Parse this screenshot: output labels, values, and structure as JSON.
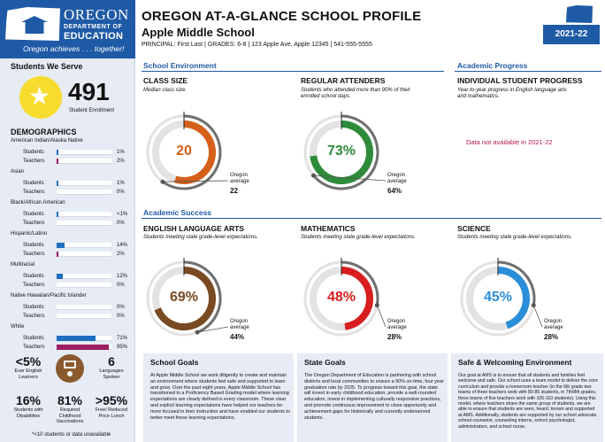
{
  "logo": {
    "org_line1": "OREGON",
    "org_line2": "DEPARTMENT OF",
    "org_line3": "EDUCATION",
    "tagline": "Oregon achieves . . . together!"
  },
  "header": {
    "title": "OREGON AT-A-GLANCE SCHOOL PROFILE",
    "school": "Apple Middle School",
    "principal_line": "PRINCIPAL: First Last | GRADES: 6-8 | 123 Apple Ave, Apple 12345 | 541-555-5555",
    "year": "2021-22"
  },
  "sidebar": {
    "heading": "Students We Serve",
    "enrollment": "491",
    "enrollment_label": "Student Enrollment",
    "demographics_heading": "DEMOGRAPHICS",
    "groups": [
      {
        "name": "American Indian/Alaska Native",
        "students": {
          "label": "Students",
          "pct": "1%",
          "value": 1
        },
        "teachers": {
          "label": "Teachers",
          "pct": "2%",
          "value": 2
        }
      },
      {
        "name": "Asian",
        "students": {
          "label": "Students",
          "pct": "1%",
          "value": 1
        },
        "teachers": {
          "label": "Teachers",
          "pct": "0%",
          "value": 0
        }
      },
      {
        "name": "Black/African American",
        "students": {
          "label": "Students",
          "pct": "<1%",
          "value": 0.5
        },
        "teachers": {
          "label": "Teachers",
          "pct": "0%",
          "value": 0
        }
      },
      {
        "name": "Hispanic/Latino",
        "students": {
          "label": "Students",
          "pct": "14%",
          "value": 14
        },
        "teachers": {
          "label": "Teachers",
          "pct": "2%",
          "value": 2
        }
      },
      {
        "name": "Multiracial",
        "students": {
          "label": "Students",
          "pct": "12%",
          "value": 12
        },
        "teachers": {
          "label": "Teachers",
          "pct": "0%",
          "value": 0
        }
      },
      {
        "name": "Native Hawaiian/Pacific Islander",
        "students": {
          "label": "Students",
          "pct": "0%",
          "value": 0
        },
        "teachers": {
          "label": "Teachers",
          "pct": "0%",
          "value": 0
        }
      },
      {
        "name": "White",
        "students": {
          "label": "Students",
          "pct": "71%",
          "value": 71
        },
        "teachers": {
          "label": "Teachers",
          "pct": "95%",
          "value": 95
        }
      }
    ],
    "stats": {
      "english_learners": {
        "value": "<5%",
        "label": "Ever English Learners"
      },
      "languages": {
        "value": "6",
        "label": "Languages Spoken"
      },
      "disabilities": {
        "value": "16%",
        "label": "Students with Disabilities"
      },
      "vaccinations": {
        "value": "81%",
        "label": "Required Childhood Vaccinations"
      },
      "lunch": {
        "value": ">95%",
        "label": "Free/ Reduced Price Lunch"
      }
    },
    "footnote": "*<10 students or data unavailable"
  },
  "sections": {
    "environment": "School Environment",
    "progress": "Academic Progress",
    "success": "Academic Success"
  },
  "metrics": {
    "class_size": {
      "title": "CLASS SIZE",
      "desc": "Median class size.",
      "value": "20",
      "avg_label": "Oregon average",
      "avg": "22",
      "fill": 0.55,
      "avg_frac": 0.6,
      "color": "#d4601a"
    },
    "attenders": {
      "title": "REGULAR ATTENDERS",
      "desc": "Students who attended more than 90% of their enrolled school days.",
      "value": "73%",
      "avg_label": "Oregon average",
      "avg": "64%",
      "fill": 0.73,
      "avg_frac": 0.64,
      "color": "#2e8b3a"
    },
    "progress": {
      "title": "INDIVIDUAL STUDENT PROGRESS",
      "desc": "Year-to-year progress in English language arts and mathematics.",
      "na": "Data not available in 2021-22"
    },
    "ela": {
      "title": "ENGLISH LANGUAGE ARTS",
      "desc": "Students meeting state grade-level expectations.",
      "value": "69%",
      "avg_label": "Oregon average",
      "avg": "44%",
      "fill": 0.69,
      "avg_frac": 0.44,
      "color": "#7a4a22"
    },
    "math": {
      "title": "MATHEMATICS",
      "desc": "Students meeting state grade-level expectations.",
      "value": "48%",
      "avg_label": "Oregon average",
      "avg": "28%",
      "fill": 0.48,
      "avg_frac": 0.28,
      "color": "#d81e1e"
    },
    "science": {
      "title": "SCIENCE",
      "desc": "Students meeting state grade-level expectations.",
      "value": "45%",
      "avg_label": "Oregon average",
      "avg": "28%",
      "fill": 0.45,
      "avg_frac": 0.28,
      "color": "#2a8ed8"
    }
  },
  "boxes": {
    "school_goals": {
      "heading": "School Goals",
      "text": "At Apple Middle School we work diligently to create and maintain an environment where students feel safe and supported to learn and grow. Over the past eight years, Apple Middle School has transitioned to a Proficiency Based Grading model where learning expectations are clearly defined in every classroom. These clear and explicit learning expectations have helped our teachers be more focused in their instruction and have enabled our students to better meet these learning expectations."
    },
    "state_goals": {
      "heading": "State Goals",
      "text": "The Oregon Department of Education is partnering with school districts and local communities to ensure a 90% on-time, four year graduation rate by 2025. To progress toward this goal, the state will invest in early childhood education, provide a well-rounded education, invest in implementing culturally responsive practices, and promote continuous improvement to close opportunity and achievement gaps for historically and currently underserved students."
    },
    "safe": {
      "heading": "Safe & Welcoming Environment",
      "text": "Our goal at AMS is to ensure that all students and families feel welcome and safe. Our school uses a team model to deliver the core curriculum and provide a homeroom teacher (in the 6th grade two teams of three teachers work with 80-85 students, in 7th/8th grades, three teams of five teachers work with 105-110 students). Using this model, where teachers share the same group of students, we are able to ensure that students are seen, heard, known and supported at AMS. Additionally, students are supported by our school advocate, school counselor, counseling interns, school psychologist, administrators, and school nurse."
    }
  }
}
